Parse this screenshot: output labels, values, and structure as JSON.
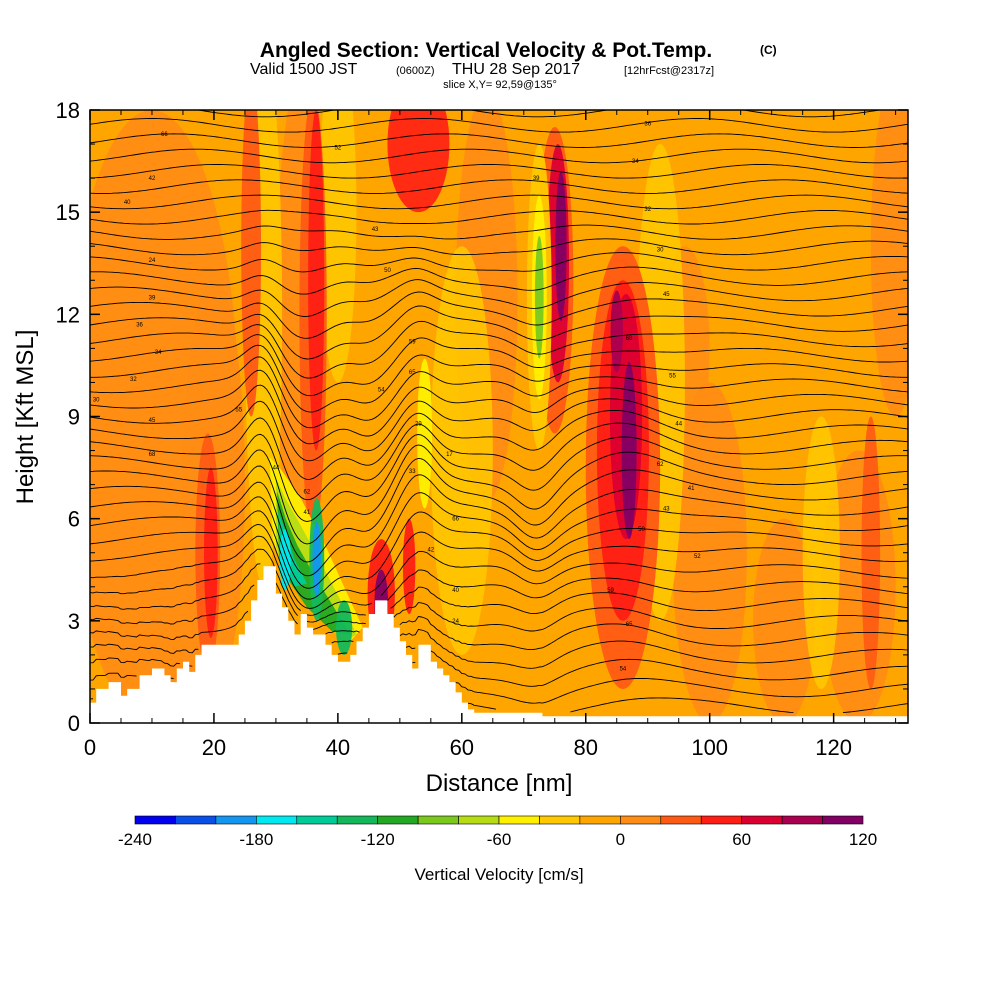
{
  "header": {
    "title_main": "Angled Section: Vertical Velocity & Pot.Temp.",
    "title_unit": "(C)",
    "valid_prefix": "Valid 1500 JST",
    "valid_utc": "(0600Z)",
    "valid_date": "THU 28 Sep 2017",
    "forecast_tag": "[12hrFcst@2317z]",
    "slice": "slice X,Y= 92,59@135°"
  },
  "chart_data": {
    "type": "heatmap",
    "title": "Angled Section: Vertical Velocity & Pot.Temp. (C)",
    "xlabel": "Distance [nm]",
    "ylabel": "Height [Kft MSL]",
    "xlim": [
      0,
      132
    ],
    "ylim": [
      0,
      18
    ],
    "xticks": [
      0,
      20,
      40,
      60,
      80,
      100,
      120
    ],
    "yticks": [
      0,
      3,
      6,
      9,
      12,
      15,
      18
    ],
    "colorbar": {
      "title": "Vertical Velocity [cm/s]",
      "range": [
        -240,
        120
      ],
      "step": 20,
      "tick_values": [
        -240,
        -180,
        -120,
        -60,
        0,
        60,
        120
      ],
      "tick_labels": [
        "-240",
        "-180",
        "-120",
        "-60",
        "0",
        "60",
        "120"
      ],
      "colors": [
        "#0000ee",
        "#0a4fe8",
        "#1496f0",
        "#00e8f0",
        "#00cc99",
        "#14b85a",
        "#22a822",
        "#7ac81e",
        "#b6dc14",
        "#fff000",
        "#ffc800",
        "#ffa500",
        "#ff8c14",
        "#ff5a14",
        "#ff1e14",
        "#dc0032",
        "#aa0050",
        "#820064"
      ]
    },
    "terrain_profile": [
      [
        0,
        0.6
      ],
      [
        1,
        0.6
      ],
      [
        1,
        1
      ],
      [
        3,
        1
      ],
      [
        3,
        1.2
      ],
      [
        5,
        1.2
      ],
      [
        5,
        0.8
      ],
      [
        6,
        0.8
      ],
      [
        6,
        1
      ],
      [
        8,
        1
      ],
      [
        8,
        1.4
      ],
      [
        10,
        1.4
      ],
      [
        10,
        1.6
      ],
      [
        12,
        1.6
      ],
      [
        12,
        1.4
      ],
      [
        13,
        1.4
      ],
      [
        13,
        1.2
      ],
      [
        14,
        1.2
      ],
      [
        14,
        1.6
      ],
      [
        15,
        1.6
      ],
      [
        15,
        1.8
      ],
      [
        16,
        1.8
      ],
      [
        16,
        1.5
      ],
      [
        17,
        1.5
      ],
      [
        17,
        2
      ],
      [
        18,
        2
      ],
      [
        18,
        2.3
      ],
      [
        24,
        2.3
      ],
      [
        24,
        2.6
      ],
      [
        25,
        2.6
      ],
      [
        25,
        3
      ],
      [
        26,
        3
      ],
      [
        26,
        3.6
      ],
      [
        27,
        3.6
      ],
      [
        27,
        4.2
      ],
      [
        28,
        4.2
      ],
      [
        28,
        4.6
      ],
      [
        30,
        4.6
      ],
      [
        30,
        3.8
      ],
      [
        31,
        3.8
      ],
      [
        31,
        3.4
      ],
      [
        32,
        3.4
      ],
      [
        32,
        3
      ],
      [
        33,
        3
      ],
      [
        33,
        2.6
      ],
      [
        34,
        2.6
      ],
      [
        34,
        3.2
      ],
      [
        35,
        3.2
      ],
      [
        35,
        2.8
      ],
      [
        36,
        2.8
      ],
      [
        36,
        2.6
      ],
      [
        38,
        2.6
      ],
      [
        38,
        2.3
      ],
      [
        39,
        2.3
      ],
      [
        39,
        2
      ],
      [
        40,
        2
      ],
      [
        40,
        1.8
      ],
      [
        42,
        1.8
      ],
      [
        42,
        2
      ],
      [
        43,
        2
      ],
      [
        43,
        2.4
      ],
      [
        44,
        2.4
      ],
      [
        44,
        2.8
      ],
      [
        45,
        2.8
      ],
      [
        45,
        3.2
      ],
      [
        46,
        3.2
      ],
      [
        46,
        3.6
      ],
      [
        48,
        3.6
      ],
      [
        48,
        3.2
      ],
      [
        49,
        3.2
      ],
      [
        49,
        2.8
      ],
      [
        50,
        2.8
      ],
      [
        50,
        2.4
      ],
      [
        51,
        2.4
      ],
      [
        51,
        2
      ],
      [
        52,
        2
      ],
      [
        52,
        1.6
      ],
      [
        53,
        1.6
      ],
      [
        53,
        2.3
      ],
      [
        55,
        2.3
      ],
      [
        55,
        1.8
      ],
      [
        56,
        1.8
      ],
      [
        56,
        1.6
      ],
      [
        57,
        1.6
      ],
      [
        57,
        1.4
      ],
      [
        58,
        1.4
      ],
      [
        58,
        1.2
      ],
      [
        59,
        1.2
      ],
      [
        59,
        0.9
      ],
      [
        60,
        0.9
      ],
      [
        60,
        0.6
      ],
      [
        61,
        0.6
      ],
      [
        61,
        0.4
      ],
      [
        62,
        0.4
      ],
      [
        62,
        0.3
      ],
      [
        73,
        0.3
      ],
      [
        73,
        0.2
      ],
      [
        132,
        0.2
      ]
    ],
    "isentrope_labels": [
      "66",
      "42",
      "40",
      "24",
      "39",
      "36",
      "34",
      "32",
      "30",
      "45",
      "68",
      "55",
      "44",
      "62",
      "41",
      "43",
      "50",
      "52",
      "59",
      "65",
      "54",
      "29",
      "17",
      "33"
    ]
  }
}
